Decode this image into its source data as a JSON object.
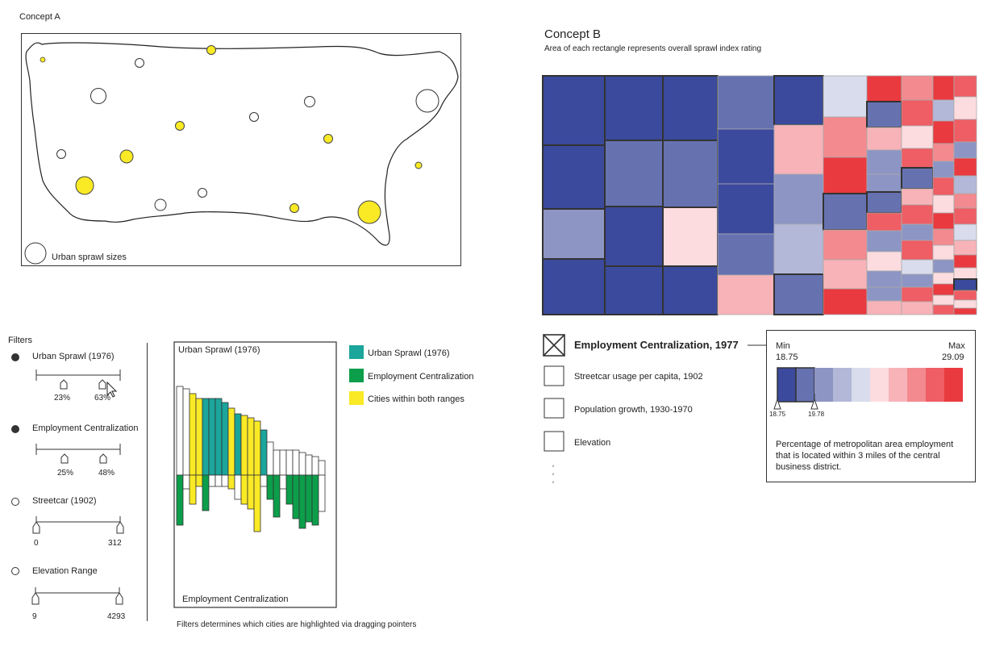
{
  "colors": {
    "yellow": "#f9ea25",
    "teal": "#1ba59b",
    "green": "#0c9e4a",
    "dark_blue": "#3b4a9c",
    "mid_blue": "#6672b0",
    "light_blue": "#8d95c4",
    "pale_blue": "#b3b8d8",
    "very_pale_blue": "#d9dcec",
    "pale_pink": "#fcdcdf",
    "light_pink": "#f7b3b8",
    "salmon": "#f28a8f",
    "light_red": "#ee5e64",
    "red": "#e93a3f"
  },
  "concept_a": {
    "title": "Concept A",
    "map_legend_label": "Urban sprawl sizes"
  },
  "filters": {
    "title": "Filters",
    "items": [
      {
        "label": "Urban Sprawl (1976)",
        "active": true,
        "min_label": "23%",
        "max_label": "63%"
      },
      {
        "label": "Employment Centralization",
        "active": true,
        "min_label": "25%",
        "max_label": "48%"
      },
      {
        "label": "Streetcar (1902)",
        "active": false,
        "min_label": "0",
        "max_label": "312"
      },
      {
        "label": "Elevation Range",
        "active": false,
        "min_label": "9",
        "max_label": "4293"
      }
    ],
    "caption": "Filters determines which cities are highlighted via dragging pointers"
  },
  "bar_chart": {
    "top_label": "Urban Sprawl (1976)",
    "bottom_label": "Employment Centralization",
    "legend": [
      {
        "label": "Urban Sprawl (1976)",
        "color_key": "teal"
      },
      {
        "label": "Employment Centralization",
        "color_key": "green"
      },
      {
        "label": "Cities within both ranges",
        "color_key": "yellow"
      }
    ]
  },
  "chart_data": {
    "type": "bar",
    "series": [
      {
        "values": [
          110,
          107,
          101,
          95,
          95,
          95,
          95,
          90,
          83,
          76,
          74,
          71,
          67,
          56,
          41,
          31,
          31,
          31,
          31,
          28,
          25,
          23,
          18
        ]
      },
      {
        "values": [
          62,
          17,
          36,
          14,
          44,
          14,
          14,
          14,
          17,
          30,
          36,
          42,
          70,
          14,
          30,
          52,
          17,
          36,
          54,
          66,
          58,
          62,
          45
        ]
      }
    ],
    "series_colors": [
      "white",
      "white",
      "yellow",
      "yellow",
      "teal",
      "teal",
      "teal",
      "teal",
      "yellow",
      "teal",
      "yellow",
      "yellow",
      "yellow",
      "teal",
      "white",
      "white",
      "white",
      "white",
      "white",
      "white",
      "white",
      "white",
      "white"
    ],
    "bottom_colors": [
      "green",
      "white",
      "yellow",
      "yellow",
      "green",
      "white",
      "white",
      "white",
      "yellow",
      "white",
      "yellow",
      "yellow",
      "yellow",
      "white",
      "green",
      "green",
      "white",
      "green",
      "green",
      "green",
      "green",
      "green",
      "white"
    ]
  },
  "concept_b": {
    "title": "Concept B",
    "subtitle": "Area of each rectangle represents overall sprawl index rating"
  },
  "variables": {
    "items": [
      {
        "label": "Employment Centralization, 1977",
        "checked": true
      },
      {
        "label": "Streetcar usage per capita, 1902",
        "checked": false
      },
      {
        "label": "Population growth, 1930-1970",
        "checked": false
      },
      {
        "label": "Elevation",
        "checked": false
      }
    ],
    "more": "·"
  },
  "scale": {
    "min_label": "Min",
    "min_value": "18.75",
    "max_label": "Max",
    "max_value": "29.09",
    "pointer_low": "18.75",
    "pointer_high": "19.78",
    "description": "Percentage of metropolitan area employment that is located within 3 miles of the central business district."
  }
}
